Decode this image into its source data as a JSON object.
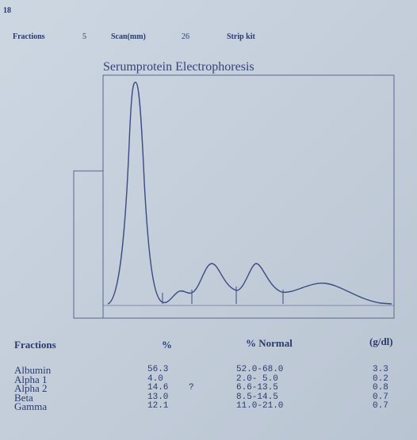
{
  "header": {
    "page": "18",
    "fractions_label": "Fractions",
    "fractions_value": "5",
    "scan_label": "Scan(mm)",
    "scan_value": "26",
    "strip_kit_label": "Strip kit"
  },
  "chart": {
    "title": "Serumprotein Electrophoresis"
  },
  "table": {
    "header": [
      "Fractions",
      "%",
      "% Normal",
      "(g/dl)"
    ],
    "rows": [
      [
        "Albumin",
        "56.3",
        "",
        "52.0-68.0",
        "3.3"
      ],
      [
        "Alpha 1",
        "4.0",
        "",
        "2.0- 5.0",
        "0.2"
      ],
      [
        "Alpha 2",
        "14.6",
        "?",
        "6.6-13.5",
        "0.8"
      ],
      [
        "Beta",
        "13.0",
        "",
        "8.5-14.5",
        "0.7"
      ],
      [
        "Gamma",
        "12.1",
        "",
        "11.0-21.0",
        "0.7"
      ]
    ]
  }
}
